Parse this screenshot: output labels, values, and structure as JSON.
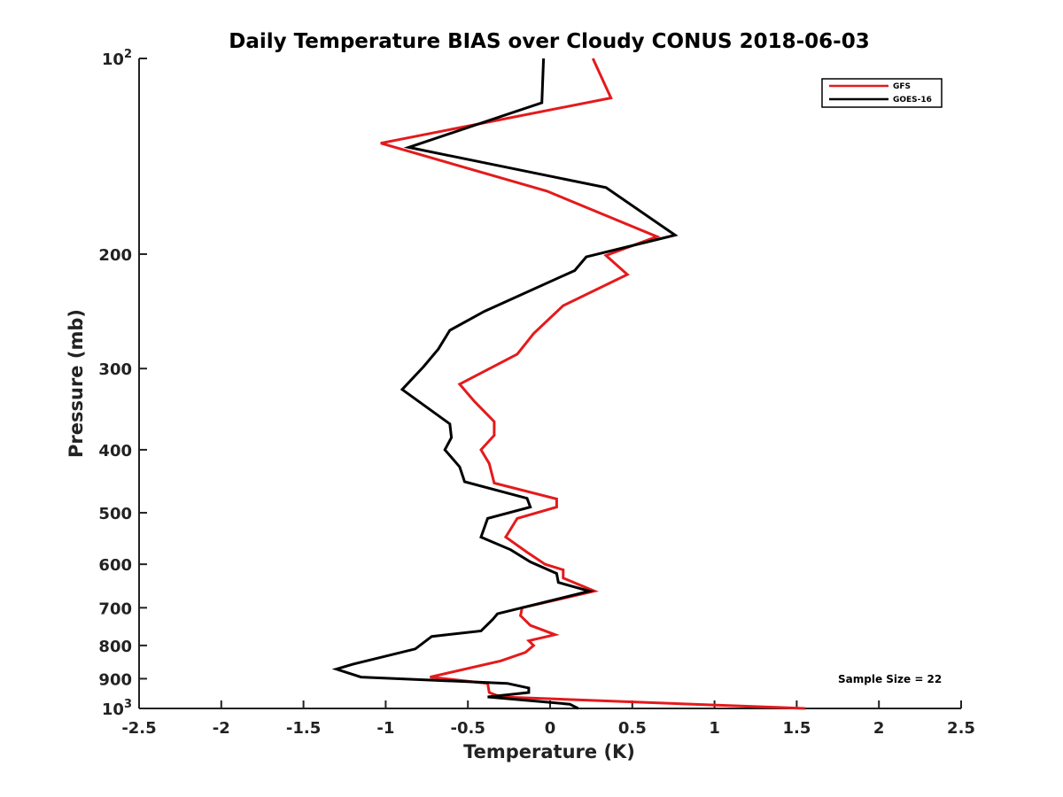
{
  "chart_data": {
    "type": "line",
    "title": "Daily Temperature BIAS over Cloudy CONUS 2018-06-03",
    "xlabel": "Temperature (K)",
    "ylabel": "Pressure (mb)",
    "xlim": [
      -2.5,
      2.5
    ],
    "ylim": [
      100,
      1000
    ],
    "y_scale": "log",
    "y_reversed": true,
    "grid": false,
    "legend_position": "top-right",
    "x_ticks": [
      "-2.5",
      "-2",
      "-1.5",
      "-1",
      "-0.5",
      "0",
      "0.5",
      "1",
      "1.5",
      "2",
      "2.5"
    ],
    "y_ticks": [
      {
        "value": 100,
        "base": "10",
        "exp": "2"
      },
      {
        "value": 200,
        "label": "200"
      },
      {
        "value": 300,
        "label": "300"
      },
      {
        "value": 400,
        "label": "400"
      },
      {
        "value": 500,
        "label": "500"
      },
      {
        "value": 600,
        "label": "600"
      },
      {
        "value": 700,
        "label": "700"
      },
      {
        "value": 800,
        "label": "800"
      },
      {
        "value": 900,
        "label": "900"
      },
      {
        "value": 1000,
        "base": "10",
        "exp": "3"
      }
    ],
    "series": [
      {
        "name": "GFS",
        "color": "#e41a1c",
        "points": [
          {
            "x": 0.26,
            "p": 100
          },
          {
            "x": 0.37,
            "p": 115
          },
          {
            "x": -1.03,
            "p": 135
          },
          {
            "x": -0.02,
            "p": 160
          },
          {
            "x": 0.65,
            "p": 188
          },
          {
            "x": 0.34,
            "p": 201
          },
          {
            "x": 0.47,
            "p": 215
          },
          {
            "x": 0.08,
            "p": 240
          },
          {
            "x": -0.1,
            "p": 265
          },
          {
            "x": -0.2,
            "p": 285
          },
          {
            "x": -0.55,
            "p": 317
          },
          {
            "x": -0.46,
            "p": 337
          },
          {
            "x": -0.34,
            "p": 362
          },
          {
            "x": -0.34,
            "p": 380
          },
          {
            "x": -0.42,
            "p": 400
          },
          {
            "x": -0.37,
            "p": 420
          },
          {
            "x": -0.34,
            "p": 450
          },
          {
            "x": 0.04,
            "p": 476
          },
          {
            "x": 0.04,
            "p": 490
          },
          {
            "x": -0.2,
            "p": 510
          },
          {
            "x": -0.27,
            "p": 545
          },
          {
            "x": -0.14,
            "p": 575
          },
          {
            "x": -0.03,
            "p": 600
          },
          {
            "x": 0.08,
            "p": 612
          },
          {
            "x": 0.08,
            "p": 630
          },
          {
            "x": 0.27,
            "p": 660
          },
          {
            "x": -0.17,
            "p": 700
          },
          {
            "x": -0.18,
            "p": 720
          },
          {
            "x": -0.12,
            "p": 745
          },
          {
            "x": 0.03,
            "p": 770
          },
          {
            "x": -0.13,
            "p": 787
          },
          {
            "x": -0.1,
            "p": 800
          },
          {
            "x": -0.15,
            "p": 820
          },
          {
            "x": -0.3,
            "p": 845
          },
          {
            "x": -0.73,
            "p": 895
          },
          {
            "x": -0.38,
            "p": 915
          },
          {
            "x": -0.37,
            "p": 945
          },
          {
            "x": -0.3,
            "p": 960
          },
          {
            "x": 1.55,
            "p": 1000
          }
        ]
      },
      {
        "name": "GOES-16",
        "color": "#000000",
        "points": [
          {
            "x": -0.04,
            "p": 100
          },
          {
            "x": -0.05,
            "p": 117
          },
          {
            "x": -0.86,
            "p": 137
          },
          {
            "x": 0.34,
            "p": 158
          },
          {
            "x": 0.76,
            "p": 187
          },
          {
            "x": 0.22,
            "p": 202
          },
          {
            "x": 0.15,
            "p": 212
          },
          {
            "x": -0.4,
            "p": 245
          },
          {
            "x": -0.61,
            "p": 262
          },
          {
            "x": -0.68,
            "p": 280
          },
          {
            "x": -0.77,
            "p": 298
          },
          {
            "x": -0.9,
            "p": 323
          },
          {
            "x": -0.61,
            "p": 365
          },
          {
            "x": -0.6,
            "p": 383
          },
          {
            "x": -0.64,
            "p": 400
          },
          {
            "x": -0.55,
            "p": 425
          },
          {
            "x": -0.52,
            "p": 448
          },
          {
            "x": -0.14,
            "p": 475
          },
          {
            "x": -0.12,
            "p": 490
          },
          {
            "x": -0.38,
            "p": 510
          },
          {
            "x": -0.42,
            "p": 545
          },
          {
            "x": -0.24,
            "p": 570
          },
          {
            "x": -0.12,
            "p": 595
          },
          {
            "x": 0.04,
            "p": 620
          },
          {
            "x": 0.05,
            "p": 640
          },
          {
            "x": 0.24,
            "p": 660
          },
          {
            "x": -0.32,
            "p": 715
          },
          {
            "x": -0.35,
            "p": 730
          },
          {
            "x": -0.42,
            "p": 760
          },
          {
            "x": -0.72,
            "p": 775
          },
          {
            "x": -0.82,
            "p": 810
          },
          {
            "x": -1.2,
            "p": 855
          },
          {
            "x": -1.3,
            "p": 870
          },
          {
            "x": -1.15,
            "p": 895
          },
          {
            "x": -0.26,
            "p": 915
          },
          {
            "x": -0.13,
            "p": 930
          },
          {
            "x": -0.13,
            "p": 945
          },
          {
            "x": -0.38,
            "p": 960
          },
          {
            "x": 0.12,
            "p": 985
          },
          {
            "x": 0.17,
            "p": 1000
          }
        ]
      }
    ],
    "annotation": "Sample Size = 22"
  }
}
